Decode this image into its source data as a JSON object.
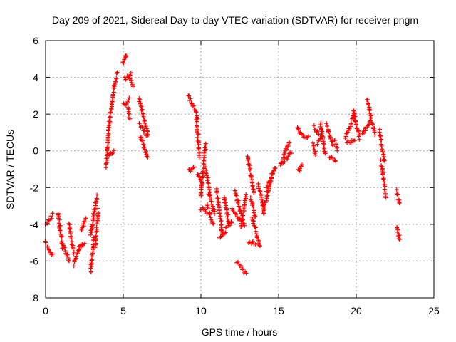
{
  "chart_data": {
    "type": "scatter",
    "title": "Day 209 of 2021, Sidereal Day-to-day VTEC variation (SDTVAR) for receiver pngm",
    "xlabel": "GPS time / hours",
    "ylabel": "SDTVAR / TECUs",
    "xlim": [
      0,
      25
    ],
    "ylim": [
      -8,
      6
    ],
    "xticks": [
      "0",
      "5",
      "10",
      "15",
      "20",
      "25"
    ],
    "yticks": [
      "-8",
      "-6",
      "-4",
      "-2",
      "0",
      "2",
      "4",
      "6"
    ],
    "grid": true,
    "marker": "plus",
    "color": "#ff0000",
    "series": [
      {
        "name": "SDTVAR",
        "segments": [
          [
            0.0,
            -4.0,
            0.45,
            -3.5
          ],
          [
            0.0,
            -5.0,
            0.45,
            -5.7
          ],
          [
            0.8,
            -3.4,
            1.1,
            -5.3
          ],
          [
            1.1,
            -5.0,
            1.5,
            -6.0
          ],
          [
            1.5,
            -3.9,
            1.8,
            -5.6
          ],
          [
            1.8,
            -6.2,
            2.2,
            -5.2
          ],
          [
            2.2,
            -5.3,
            2.5,
            -5.0
          ],
          [
            2.3,
            -4.3,
            2.6,
            -3.7
          ],
          [
            2.9,
            -6.6,
            3.1,
            -4.8
          ],
          [
            2.9,
            -4.6,
            3.3,
            -2.5
          ],
          [
            3.2,
            -5.2,
            3.4,
            -3.2
          ],
          [
            3.9,
            -0.9,
            4.1,
            1.5
          ],
          [
            4.1,
            -0.2,
            4.4,
            0.0
          ],
          [
            4.1,
            1.5,
            4.4,
            3.4
          ],
          [
            4.4,
            3.5,
            4.6,
            4.2
          ],
          [
            5.0,
            4.8,
            5.2,
            5.2
          ],
          [
            5.0,
            2.5,
            5.4,
            2.8
          ],
          [
            5.1,
            3.9,
            5.5,
            4.2
          ],
          [
            5.3,
            2.4,
            5.4,
            1.8
          ],
          [
            5.4,
            4.0,
            5.6,
            3.6
          ],
          [
            6.0,
            2.9,
            6.6,
            0.8
          ],
          [
            6.0,
            1.5,
            6.6,
            0.8
          ],
          [
            6.1,
            0.8,
            6.6,
            -0.4
          ],
          [
            9.2,
            3.0,
            9.8,
            1.8
          ],
          [
            9.2,
            -1.1,
            9.6,
            -0.8
          ],
          [
            9.7,
            1.8,
            9.9,
            -0.3
          ],
          [
            9.8,
            -1.2,
            10.0,
            -1.6
          ],
          [
            10.0,
            -2.4,
            10.3,
            0.4
          ],
          [
            10.0,
            -3.1,
            10.4,
            -3.4
          ],
          [
            10.3,
            -0.9,
            10.6,
            -2.4
          ],
          [
            10.4,
            -3.0,
            10.8,
            -4.0
          ],
          [
            10.5,
            -2.3,
            10.9,
            -3.4
          ],
          [
            11.0,
            -2.0,
            11.4,
            -4.6
          ],
          [
            11.2,
            -4.8,
            11.6,
            -4.4
          ],
          [
            11.5,
            -2.5,
            11.8,
            -4.0
          ],
          [
            11.6,
            -4.1,
            12.0,
            -3.9
          ],
          [
            12.0,
            -3.1,
            12.6,
            -3.9
          ],
          [
            12.2,
            -2.2,
            12.8,
            -4.1
          ],
          [
            12.3,
            -6.1,
            12.9,
            -6.7
          ],
          [
            12.6,
            -4.2,
            12.9,
            -2.4
          ],
          [
            13.0,
            -0.3,
            13.4,
            -2.3
          ],
          [
            13.1,
            -4.9,
            13.5,
            -5.1
          ],
          [
            13.2,
            -2.5,
            13.5,
            -3.6
          ],
          [
            13.3,
            -3.6,
            13.8,
            -5.2
          ],
          [
            13.7,
            -1.9,
            14.1,
            -3.3
          ],
          [
            14.0,
            -3.4,
            14.6,
            -1.2
          ],
          [
            14.2,
            -2.1,
            14.8,
            -0.9
          ],
          [
            15.1,
            -0.8,
            15.7,
            0.5
          ],
          [
            15.3,
            -0.6,
            15.8,
            -0.1
          ],
          [
            16.2,
            1.3,
            16.4,
            0.9
          ],
          [
            16.3,
            -1.1,
            16.5,
            -0.8
          ],
          [
            16.5,
            0.9,
            16.9,
            0.7
          ],
          [
            17.2,
            0.4,
            17.4,
            -0.2
          ],
          [
            17.3,
            1.3,
            17.6,
            0.9
          ],
          [
            17.5,
            0.4,
            17.8,
            0.8
          ],
          [
            17.7,
            1.5,
            18.0,
            -0.2
          ],
          [
            18.1,
            1.4,
            18.5,
            0.3
          ],
          [
            18.3,
            -0.3,
            18.7,
            -0.5
          ],
          [
            18.6,
            0.6,
            18.8,
            0.1
          ],
          [
            19.3,
            0.7,
            19.8,
            1.8
          ],
          [
            19.4,
            0.5,
            19.9,
            0.5
          ],
          [
            19.8,
            2.2,
            20.2,
            0.7
          ],
          [
            20.4,
            0.9,
            20.9,
            1.6
          ],
          [
            20.7,
            2.8,
            21.2,
            0.9
          ],
          [
            21.5,
            1.1,
            21.8,
            -0.6
          ],
          [
            21.6,
            -0.6,
            21.9,
            -2.5
          ],
          [
            22.6,
            -2.2,
            22.8,
            -2.8
          ],
          [
            22.6,
            -4.1,
            22.8,
            -4.8
          ]
        ]
      }
    ]
  }
}
